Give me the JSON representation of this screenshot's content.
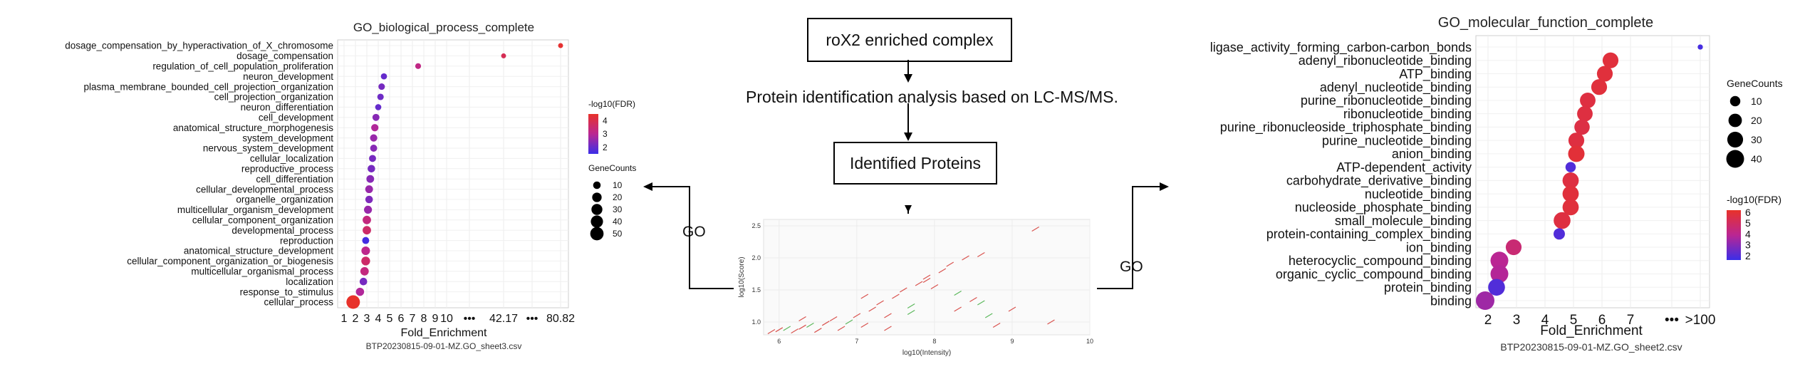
{
  "flow": {
    "top_box": "roX2 enriched complex",
    "analysis_text": "Protein identification analysis based on LC-MS/MS.",
    "identified_box": "Identified Proteins",
    "go_left": "GO",
    "go_right": "GO"
  },
  "chart_data": [
    {
      "type": "scatter",
      "title": "GO_biological_process_complete",
      "xlabel": "Fold_Enrichment",
      "ylabel": "",
      "x_ticks": [
        "1",
        "2",
        "3",
        "4",
        "5",
        "6",
        "7",
        "8",
        "9",
        "10",
        "•••",
        "42.17",
        "•••",
        "80.82"
      ],
      "caption": "BTP20230815-09-01-MZ.GO_sheet3.csv",
      "color_legend": {
        "title": "-log10(FDR)",
        "ticks": [
          "4",
          "3",
          "2"
        ],
        "range": [
          1.5,
          4.5
        ],
        "low_color": "#3b2ee8",
        "high_color": "#e8322a"
      },
      "size_legend": {
        "title": "GeneCounts",
        "values": [
          10,
          20,
          30,
          40,
          50
        ]
      },
      "categories": [
        "dosage_compensation_by_hyperactivation_of_X_chromosome",
        "dosage_compensation",
        "regulation_of_cell_population_proliferation",
        "neuron_development",
        "plasma_membrane_bounded_cell_projection_organization",
        "cell_projection_organization",
        "neuron_differentiation",
        "cell_development",
        "anatomical_structure_morphogenesis",
        "system_development",
        "nervous_system_development",
        "cellular_localization",
        "reproductive_process",
        "cell_differentiation",
        "cellular_developmental_process",
        "organelle_organization",
        "multicellular_organism_development",
        "cellular_component_organization",
        "developmental_process",
        "reproduction",
        "anatomical_structure_development",
        "cellular_component_organization_or_biogenesis",
        "multicellular_organismal_process",
        "localization",
        "response_to_stimulus",
        "cellular_process"
      ],
      "x": [
        80.82,
        42.17,
        7.5,
        4.5,
        4.3,
        4.2,
        4.0,
        3.8,
        3.7,
        3.6,
        3.6,
        3.5,
        3.4,
        3.3,
        3.2,
        3.2,
        3.1,
        3.0,
        3.0,
        2.9,
        2.9,
        2.9,
        2.8,
        2.7,
        2.4,
        1.8
      ],
      "gene_counts": [
        2,
        2,
        4,
        5,
        6,
        6,
        5,
        8,
        9,
        9,
        8,
        8,
        10,
        11,
        11,
        10,
        12,
        14,
        14,
        8,
        15,
        16,
        14,
        10,
        13,
        52
      ],
      "fdr": [
        4.4,
        3.9,
        3.2,
        2.0,
        2.2,
        2.1,
        2.0,
        2.4,
        2.9,
        2.6,
        2.4,
        2.2,
        2.2,
        2.4,
        2.6,
        2.3,
        2.6,
        3.3,
        3.6,
        1.6,
        3.1,
        3.6,
        3.3,
        2.2,
        2.9,
        4.5
      ]
    },
    {
      "type": "scatter",
      "title": "",
      "xlabel": "log10(Intensity)",
      "ylabel": "log10(Score)",
      "xlim": [
        5.8,
        10
      ],
      "ylim": [
        0.8,
        2.6
      ],
      "x_ticks": [
        "6",
        "7",
        "8",
        "9",
        "10"
      ],
      "y_ticks": [
        "1.0",
        "1.5",
        "2.0",
        "2.5"
      ],
      "points_x": [
        5.9,
        6.0,
        6.1,
        6.2,
        6.3,
        6.4,
        6.5,
        6.6,
        6.7,
        6.8,
        6.9,
        7.0,
        7.1,
        7.2,
        7.3,
        7.4,
        7.5,
        7.6,
        7.7,
        7.8,
        7.9,
        8.0,
        8.1,
        8.2,
        8.3,
        8.4,
        8.5,
        8.6,
        8.7,
        8.8,
        9.0,
        9.3,
        9.5,
        6.3,
        7.1,
        7.7,
        7.9,
        8.3,
        8.6,
        7.4
      ],
      "points_y": [
        0.85,
        0.88,
        0.9,
        0.86,
        0.92,
        0.95,
        0.87,
        0.98,
        1.05,
        0.9,
        1.0,
        1.1,
        0.95,
        1.2,
        1.3,
        1.1,
        1.4,
        1.5,
        1.25,
        1.6,
        1.7,
        1.55,
        1.8,
        1.9,
        1.45,
        2.0,
        1.35,
        2.05,
        1.1,
        0.95,
        1.2,
        2.45,
        1.0,
        1.05,
        1.4,
        1.15,
        1.65,
        1.2,
        1.3,
        0.9
      ],
      "point_colors": [
        "#d9534f",
        "#d9534f",
        "#5cb85c",
        "#d9534f",
        "#d9534f",
        "#5cb85c",
        "#d9534f",
        "#d9534f",
        "#d9534f",
        "#d9534f",
        "#5cb85c",
        "#d9534f",
        "#d9534f",
        "#d9534f",
        "#d9534f",
        "#d9534f",
        "#d9534f",
        "#d9534f",
        "#5cb85c",
        "#d9534f",
        "#d9534f",
        "#d9534f",
        "#d9534f",
        "#d9534f",
        "#5cb85c",
        "#d9534f",
        "#d9534f",
        "#d9534f",
        "#5cb85c",
        "#d9534f",
        "#d9534f",
        "#d9534f",
        "#d9534f",
        "#d9534f",
        "#d9534f",
        "#5cb85c",
        "#d9534f",
        "#d9534f",
        "#5cb85c",
        "#d9534f"
      ]
    },
    {
      "type": "scatter",
      "title": "GO_molecular_function_complete",
      "xlabel": "Fold_Enrichment",
      "ylabel": "",
      "x_ticks": [
        "2",
        "3",
        "4",
        "5",
        "6",
        "7",
        "•••",
        ">100"
      ],
      "caption": "BTP20230815-09-01-MZ.GO_sheet2.csv",
      "color_legend": {
        "title": "-log10(FDR)",
        "ticks": [
          "6",
          "5",
          "4",
          "3",
          "2"
        ],
        "range": [
          1.6,
          6.2
        ],
        "low_color": "#3b2ee8",
        "high_color": "#e8322a"
      },
      "size_legend": {
        "title": "GeneCounts",
        "values": [
          10,
          20,
          30,
          40
        ]
      },
      "categories": [
        "ligase_activity_forming_carbon-carbon_bonds",
        "adenyl_ribonucleotide_binding",
        "ATP_binding",
        "adenyl_nucleotide_binding",
        "purine_ribonucleotide_binding",
        "ribonucleotide_binding",
        "purine_ribonucleoside_triphosphate_binding",
        "purine_nucleotide_binding",
        "anion_binding",
        "ATP-dependent_activity",
        "carbohydrate_derivative_binding",
        "nucleotide_binding",
        "nucleoside_phosphate_binding",
        "small_molecule_binding",
        "protein-containing_complex_binding",
        "ion_binding",
        "heterocyclic_compound_binding",
        "organic_cyclic_compound_binding",
        "protein_binding",
        "binding"
      ],
      "x": [
        100,
        6.3,
        6.1,
        5.9,
        5.5,
        5.4,
        5.3,
        5.1,
        5.1,
        4.9,
        4.9,
        4.9,
        4.9,
        4.6,
        4.5,
        2.9,
        2.4,
        2.4,
        2.3,
        1.9
      ],
      "gene_counts": [
        1,
        30,
        30,
        30,
        29,
        29,
        28,
        30,
        33,
        10,
        32,
        32,
        32,
        35,
        13,
        30,
        40,
        40,
        35,
        44
      ],
      "fdr": [
        1.8,
        5.8,
        5.8,
        5.8,
        5.7,
        5.7,
        5.6,
        5.7,
        5.9,
        2.0,
        5.7,
        5.8,
        5.8,
        5.7,
        2.0,
        4.6,
        3.9,
        3.8,
        2.0,
        3.4
      ]
    }
  ]
}
